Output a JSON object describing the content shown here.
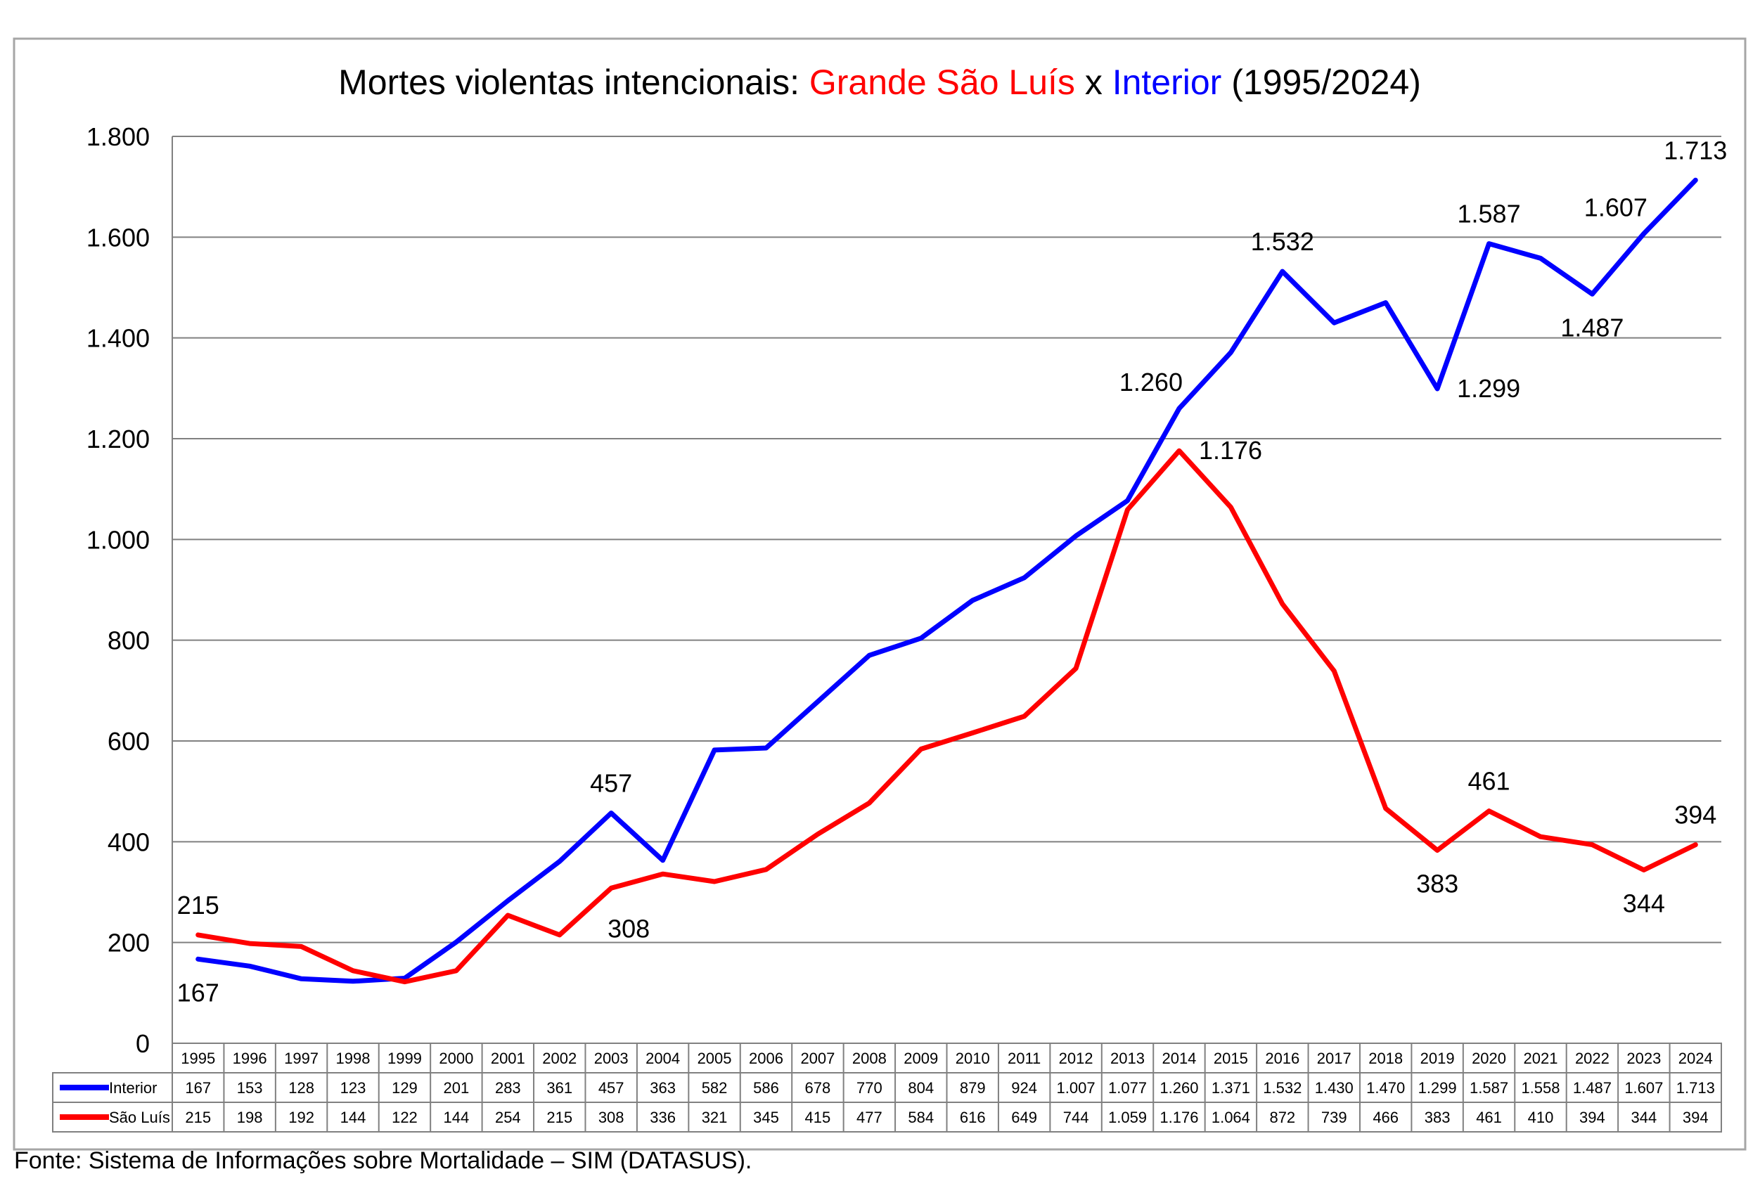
{
  "title": {
    "prefix": "Mortes violentas intencionais: ",
    "part1": "Grande São Luís",
    "middle": " x ",
    "part2": "Interior",
    "suffix": " (1995/2024)"
  },
  "source": "Fonte: Sistema de Informações sobre Mortalidade – SIM (DATASUS).",
  "colors": {
    "interior": "#0000ff",
    "sao_luis": "#ff0000",
    "grid": "#808080",
    "frame": "#a6a6a6"
  },
  "chart_data": {
    "type": "line",
    "categories": [
      "1995",
      "1996",
      "1997",
      "1998",
      "1999",
      "2000",
      "2001",
      "2002",
      "2003",
      "2004",
      "2005",
      "2006",
      "2007",
      "2008",
      "2009",
      "2010",
      "2011",
      "2012",
      "2013",
      "2014",
      "2015",
      "2016",
      "2017",
      "2018",
      "2019",
      "2020",
      "2021",
      "2022",
      "2023",
      "2024"
    ],
    "series": [
      {
        "name": "Interior",
        "color": "#0000ff",
        "values": [
          167,
          153,
          128,
          123,
          129,
          201,
          283,
          361,
          457,
          363,
          582,
          586,
          678,
          770,
          804,
          879,
          924,
          1007,
          1077,
          1260,
          1371,
          1532,
          1430,
          1470,
          1299,
          1587,
          1558,
          1487,
          1607,
          1713
        ],
        "table_labels": [
          "167",
          "153",
          "128",
          "123",
          "129",
          "201",
          "283",
          "361",
          "457",
          "363",
          "582",
          "586",
          "678",
          "770",
          "804",
          "879",
          "924",
          "1.007",
          "1.077",
          "1.260",
          "1.371",
          "1.532",
          "1.430",
          "1.470",
          "1.299",
          "1.587",
          "1.558",
          "1.487",
          "1.607",
          "1.713"
        ],
        "annotations": [
          {
            "category": "1995",
            "label": "167",
            "position": "below"
          },
          {
            "category": "2003",
            "label": "457",
            "position": "above"
          },
          {
            "category": "2014",
            "label": "1.260",
            "position": "above-left"
          },
          {
            "category": "2016",
            "label": "1.532",
            "position": "above"
          },
          {
            "category": "2019",
            "label": "1.299",
            "position": "right"
          },
          {
            "category": "2020",
            "label": "1.587",
            "position": "above"
          },
          {
            "category": "2022",
            "label": "1.487",
            "position": "below"
          },
          {
            "category": "2023",
            "label": "1.607",
            "position": "above-left"
          },
          {
            "category": "2024",
            "label": "1.713",
            "position": "above"
          }
        ]
      },
      {
        "name": "São Luís",
        "color": "#ff0000",
        "values": [
          215,
          198,
          192,
          144,
          122,
          144,
          254,
          215,
          308,
          336,
          321,
          345,
          415,
          477,
          584,
          616,
          649,
          744,
          1059,
          1176,
          1064,
          872,
          739,
          466,
          383,
          461,
          410,
          394,
          344,
          394
        ],
        "table_labels": [
          "215",
          "198",
          "192",
          "144",
          "122",
          "144",
          "254",
          "215",
          "308",
          "336",
          "321",
          "345",
          "415",
          "477",
          "584",
          "616",
          "649",
          "744",
          "1.059",
          "1.176",
          "1.064",
          "872",
          "739",
          "466",
          "383",
          "461",
          "410",
          "394",
          "344",
          "394"
        ],
        "annotations": [
          {
            "category": "1995",
            "label": "215",
            "position": "above"
          },
          {
            "category": "2003",
            "label": "308",
            "position": "below-right"
          },
          {
            "category": "2014",
            "label": "1.176",
            "position": "right"
          },
          {
            "category": "2019",
            "label": "383",
            "position": "below"
          },
          {
            "category": "2020",
            "label": "461",
            "position": "above"
          },
          {
            "category": "2023",
            "label": "344",
            "position": "below"
          },
          {
            "category": "2024",
            "label": "394",
            "position": "above"
          }
        ]
      }
    ],
    "ylim": [
      0,
      1800
    ],
    "yticks": [
      0,
      200,
      400,
      600,
      800,
      1000,
      1200,
      1400,
      1600,
      1800
    ],
    "ytick_labels": [
      "0",
      "200",
      "400",
      "600",
      "800",
      "1.000",
      "1.200",
      "1.400",
      "1.600",
      "1.800"
    ],
    "grid": true,
    "legend": "data-table"
  }
}
